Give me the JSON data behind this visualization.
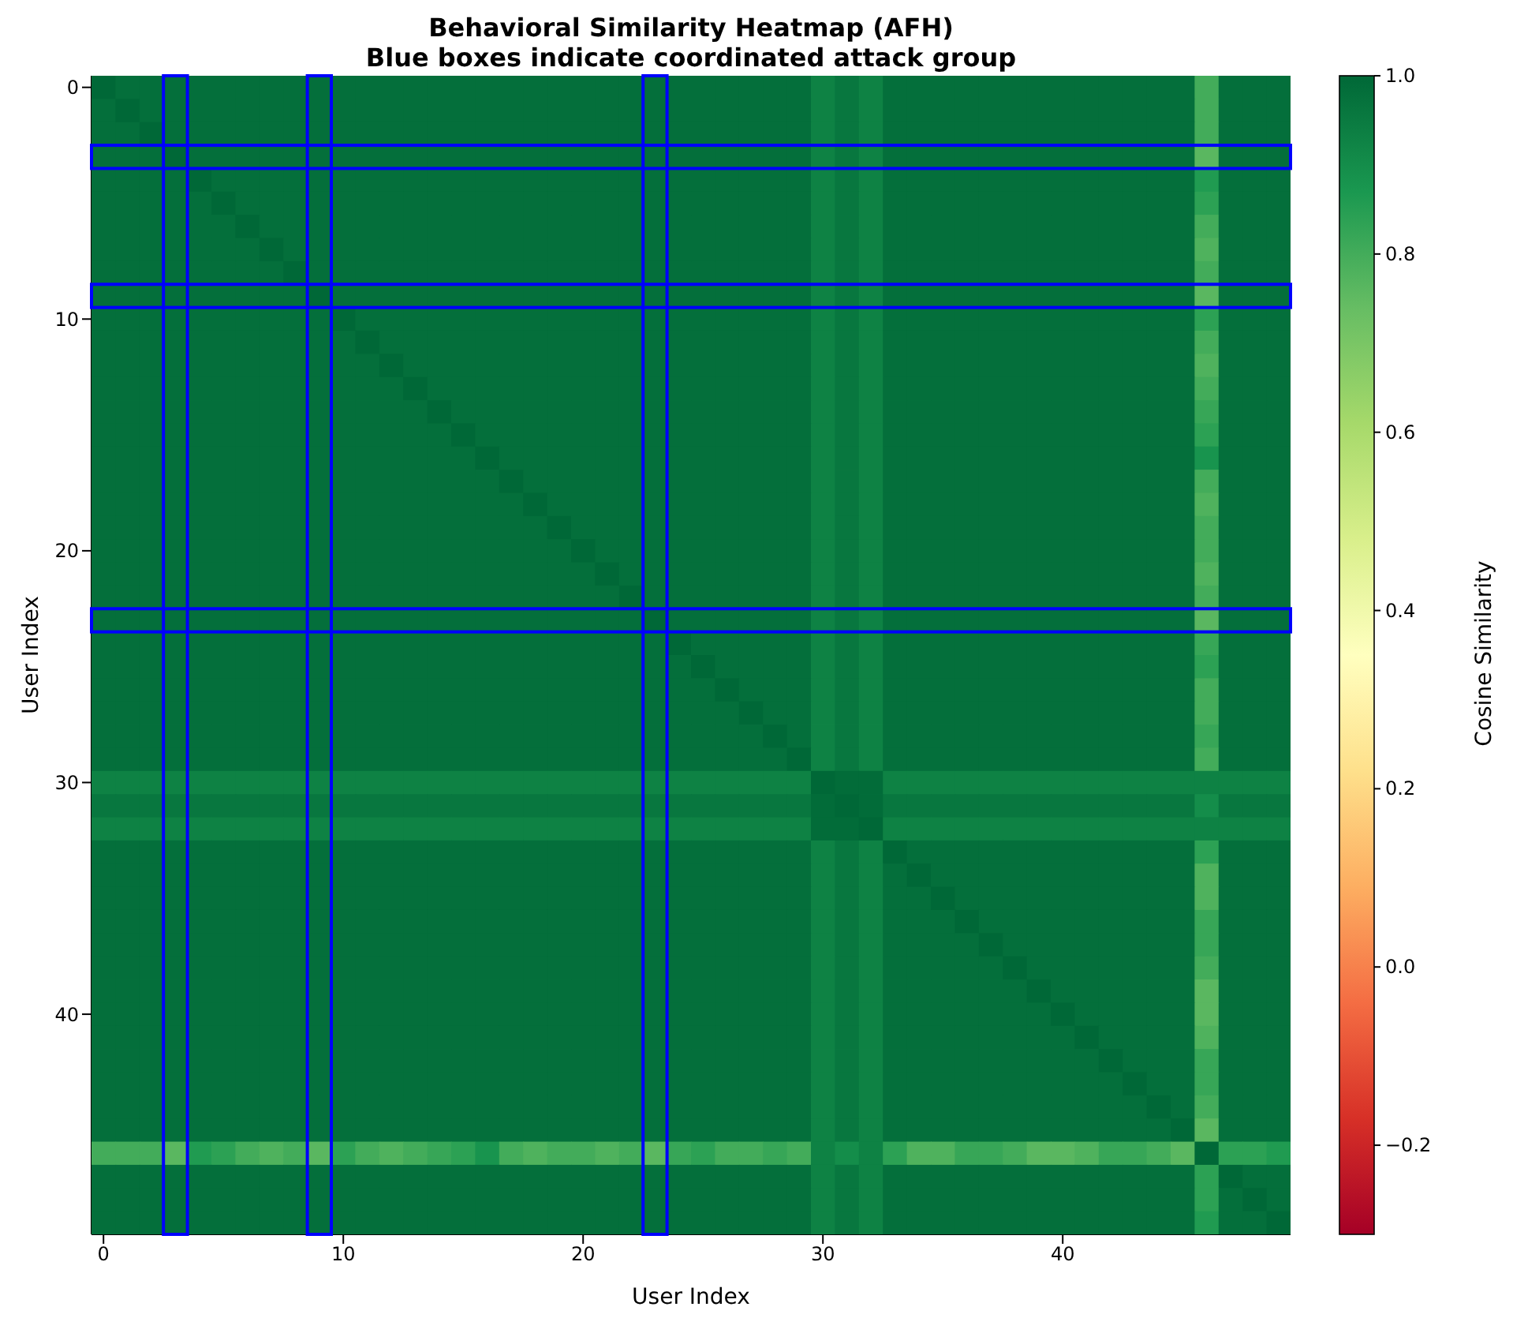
{
  "chart_data": {
    "type": "heatmap",
    "title": "Behavioral Similarity Heatmap (AFH)",
    "subtitle": "Blue boxes indicate coordinated attack group",
    "xlabel": "User Index",
    "ylabel": "User Index",
    "clabel": "Cosine Similarity",
    "categories": [
      "0",
      null,
      null,
      null,
      null,
      null,
      null,
      null,
      null,
      null,
      "10",
      null,
      null,
      null,
      null,
      null,
      null,
      null,
      null,
      null,
      "20",
      null,
      null,
      null,
      null,
      null,
      null,
      null,
      null,
      null,
      "30",
      null,
      null,
      null,
      null,
      null,
      null,
      null,
      null,
      null,
      "40",
      null,
      null,
      null,
      null,
      null,
      null,
      null,
      null,
      null
    ],
    "y_categories": [
      "0",
      null,
      null,
      null,
      null,
      null,
      null,
      null,
      null,
      null,
      "10",
      null,
      null,
      null,
      null,
      null,
      null,
      null,
      null,
      null,
      "20",
      null,
      null,
      null,
      null,
      null,
      null,
      null,
      null,
      null,
      "30",
      null,
      null,
      null,
      null,
      null,
      null,
      null,
      null,
      null,
      "40",
      null,
      null,
      null,
      null,
      null,
      null,
      null,
      null,
      null
    ],
    "clim": [
      -0.3,
      1.0
    ],
    "cticks": [
      {
        "value": -0.2,
        "label": "−0.2"
      },
      {
        "value": 0,
        "label": "0.0"
      },
      {
        "value": 0.2,
        "label": "0.2"
      },
      {
        "value": 0.4,
        "label": "0.4"
      },
      {
        "value": 0.6,
        "label": "0.6"
      },
      {
        "value": 0.8,
        "label": "0.8"
      },
      {
        "value": 1.0,
        "label": "1.0"
      }
    ],
    "cells": [
      [
        1,
        0.98,
        0.98,
        0.98,
        0.98,
        0.98,
        0.98,
        0.98,
        0.98,
        0.98,
        0.98,
        0.98,
        0.98,
        0.98,
        0.98,
        0.98,
        0.98,
        0.98,
        0.98,
        0.98,
        0.98,
        0.98,
        0.98,
        0.98,
        0.98,
        0.98,
        0.98,
        0.98,
        0.98,
        0.98,
        0.93,
        0.96,
        0.93,
        0.98,
        0.98,
        0.98,
        0.98,
        0.98,
        0.98,
        0.98,
        0.98,
        0.98,
        0.98,
        0.98,
        0.98,
        0.98,
        0.8,
        0.98,
        0.98,
        0.98
      ],
      [
        0.98,
        1,
        0.98,
        0.98,
        0.98,
        0.98,
        0.98,
        0.98,
        0.98,
        0.98,
        0.98,
        0.98,
        0.98,
        0.98,
        0.98,
        0.98,
        0.98,
        0.98,
        0.98,
        0.98,
        0.98,
        0.98,
        0.98,
        0.98,
        0.98,
        0.98,
        0.98,
        0.98,
        0.98,
        0.98,
        0.93,
        0.96,
        0.93,
        0.98,
        0.98,
        0.98,
        0.98,
        0.98,
        0.98,
        0.98,
        0.98,
        0.98,
        0.98,
        0.98,
        0.98,
        0.98,
        0.8,
        0.98,
        0.98,
        0.98
      ],
      [
        0.98,
        0.98,
        1,
        0.98,
        0.98,
        0.98,
        0.98,
        0.98,
        0.98,
        0.98,
        0.98,
        0.98,
        0.98,
        0.98,
        0.98,
        0.98,
        0.98,
        0.98,
        0.98,
        0.98,
        0.98,
        0.98,
        0.98,
        0.98,
        0.98,
        0.98,
        0.98,
        0.98,
        0.98,
        0.98,
        0.93,
        0.96,
        0.93,
        0.98,
        0.98,
        0.98,
        0.98,
        0.98,
        0.98,
        0.98,
        0.98,
        0.98,
        0.98,
        0.98,
        0.98,
        0.98,
        0.8,
        0.98,
        0.98,
        0.98
      ],
      [
        0.98,
        0.98,
        0.98,
        1,
        0.98,
        0.98,
        0.98,
        0.98,
        0.98,
        0.98,
        0.98,
        0.98,
        0.98,
        0.98,
        0.98,
        0.98,
        0.98,
        0.98,
        0.98,
        0.98,
        0.98,
        0.98,
        0.98,
        0.98,
        0.98,
        0.98,
        0.98,
        0.98,
        0.98,
        0.98,
        0.93,
        0.96,
        0.93,
        0.98,
        0.98,
        0.98,
        0.98,
        0.98,
        0.98,
        0.98,
        0.98,
        0.98,
        0.98,
        0.98,
        0.98,
        0.98,
        0.76,
        0.98,
        0.98,
        0.98
      ],
      [
        0.98,
        0.98,
        0.98,
        0.98,
        1,
        0.98,
        0.98,
        0.98,
        0.98,
        0.98,
        0.98,
        0.98,
        0.98,
        0.98,
        0.98,
        0.98,
        0.98,
        0.98,
        0.98,
        0.98,
        0.98,
        0.98,
        0.98,
        0.98,
        0.98,
        0.98,
        0.98,
        0.98,
        0.98,
        0.98,
        0.93,
        0.96,
        0.93,
        0.98,
        0.98,
        0.98,
        0.98,
        0.98,
        0.98,
        0.98,
        0.98,
        0.98,
        0.98,
        0.98,
        0.98,
        0.98,
        0.86,
        0.98,
        0.98,
        0.98
      ],
      [
        0.98,
        0.98,
        0.98,
        0.98,
        0.98,
        1,
        0.98,
        0.98,
        0.98,
        0.98,
        0.98,
        0.98,
        0.98,
        0.98,
        0.98,
        0.98,
        0.98,
        0.98,
        0.98,
        0.98,
        0.98,
        0.98,
        0.98,
        0.98,
        0.98,
        0.98,
        0.98,
        0.98,
        0.98,
        0.98,
        0.93,
        0.96,
        0.93,
        0.98,
        0.98,
        0.98,
        0.98,
        0.98,
        0.98,
        0.98,
        0.98,
        0.98,
        0.98,
        0.98,
        0.98,
        0.98,
        0.84,
        0.98,
        0.98,
        0.98
      ],
      [
        0.98,
        0.98,
        0.98,
        0.98,
        0.98,
        0.98,
        1,
        0.98,
        0.98,
        0.98,
        0.98,
        0.98,
        0.98,
        0.98,
        0.98,
        0.98,
        0.98,
        0.98,
        0.98,
        0.98,
        0.98,
        0.98,
        0.98,
        0.98,
        0.98,
        0.98,
        0.98,
        0.98,
        0.98,
        0.98,
        0.93,
        0.96,
        0.93,
        0.98,
        0.98,
        0.98,
        0.98,
        0.98,
        0.98,
        0.98,
        0.98,
        0.98,
        0.98,
        0.98,
        0.98,
        0.98,
        0.8,
        0.98,
        0.98,
        0.98
      ],
      [
        0.98,
        0.98,
        0.98,
        0.98,
        0.98,
        0.98,
        0.98,
        1,
        0.98,
        0.98,
        0.98,
        0.98,
        0.98,
        0.98,
        0.98,
        0.98,
        0.98,
        0.98,
        0.98,
        0.98,
        0.98,
        0.98,
        0.98,
        0.98,
        0.98,
        0.98,
        0.98,
        0.98,
        0.98,
        0.98,
        0.93,
        0.96,
        0.93,
        0.98,
        0.98,
        0.98,
        0.98,
        0.98,
        0.98,
        0.98,
        0.98,
        0.98,
        0.98,
        0.98,
        0.98,
        0.98,
        0.78,
        0.98,
        0.98,
        0.98
      ],
      [
        0.98,
        0.98,
        0.98,
        0.98,
        0.98,
        0.98,
        0.98,
        0.98,
        1,
        0.98,
        0.98,
        0.98,
        0.98,
        0.98,
        0.98,
        0.98,
        0.98,
        0.98,
        0.98,
        0.98,
        0.98,
        0.98,
        0.98,
        0.98,
        0.98,
        0.98,
        0.98,
        0.98,
        0.98,
        0.98,
        0.93,
        0.96,
        0.93,
        0.98,
        0.98,
        0.98,
        0.98,
        0.98,
        0.98,
        0.98,
        0.98,
        0.98,
        0.98,
        0.98,
        0.98,
        0.98,
        0.8,
        0.98,
        0.98,
        0.98
      ],
      [
        0.98,
        0.98,
        0.98,
        0.98,
        0.98,
        0.98,
        0.98,
        0.98,
        0.98,
        1,
        0.98,
        0.98,
        0.98,
        0.98,
        0.98,
        0.98,
        0.98,
        0.98,
        0.98,
        0.98,
        0.98,
        0.98,
        0.98,
        0.98,
        0.98,
        0.98,
        0.98,
        0.98,
        0.98,
        0.98,
        0.93,
        0.96,
        0.93,
        0.98,
        0.98,
        0.98,
        0.98,
        0.98,
        0.98,
        0.98,
        0.98,
        0.98,
        0.98,
        0.98,
        0.98,
        0.98,
        0.76,
        0.98,
        0.98,
        0.98
      ],
      [
        0.98,
        0.98,
        0.98,
        0.98,
        0.98,
        0.98,
        0.98,
        0.98,
        0.98,
        0.98,
        1,
        0.98,
        0.98,
        0.98,
        0.98,
        0.98,
        0.98,
        0.98,
        0.98,
        0.98,
        0.98,
        0.98,
        0.98,
        0.98,
        0.98,
        0.98,
        0.98,
        0.98,
        0.98,
        0.98,
        0.93,
        0.96,
        0.93,
        0.98,
        0.98,
        0.98,
        0.98,
        0.98,
        0.98,
        0.98,
        0.98,
        0.98,
        0.98,
        0.98,
        0.98,
        0.98,
        0.84,
        0.98,
        0.98,
        0.98
      ],
      [
        0.98,
        0.98,
        0.98,
        0.98,
        0.98,
        0.98,
        0.98,
        0.98,
        0.98,
        0.98,
        0.98,
        1,
        0.98,
        0.98,
        0.98,
        0.98,
        0.98,
        0.98,
        0.98,
        0.98,
        0.98,
        0.98,
        0.98,
        0.98,
        0.98,
        0.98,
        0.98,
        0.98,
        0.98,
        0.98,
        0.93,
        0.96,
        0.93,
        0.98,
        0.98,
        0.98,
        0.98,
        0.98,
        0.98,
        0.98,
        0.98,
        0.98,
        0.98,
        0.98,
        0.98,
        0.98,
        0.8,
        0.98,
        0.98,
        0.98
      ],
      [
        0.98,
        0.98,
        0.98,
        0.98,
        0.98,
        0.98,
        0.98,
        0.98,
        0.98,
        0.98,
        0.98,
        0.98,
        1,
        0.98,
        0.98,
        0.98,
        0.98,
        0.98,
        0.98,
        0.98,
        0.98,
        0.98,
        0.98,
        0.98,
        0.98,
        0.98,
        0.98,
        0.98,
        0.98,
        0.98,
        0.93,
        0.96,
        0.93,
        0.98,
        0.98,
        0.98,
        0.98,
        0.98,
        0.98,
        0.98,
        0.98,
        0.98,
        0.98,
        0.98,
        0.98,
        0.98,
        0.78,
        0.98,
        0.98,
        0.98
      ],
      [
        0.98,
        0.98,
        0.98,
        0.98,
        0.98,
        0.98,
        0.98,
        0.98,
        0.98,
        0.98,
        0.98,
        0.98,
        0.98,
        1,
        0.98,
        0.98,
        0.98,
        0.98,
        0.98,
        0.98,
        0.98,
        0.98,
        0.98,
        0.98,
        0.98,
        0.98,
        0.98,
        0.98,
        0.98,
        0.98,
        0.93,
        0.96,
        0.93,
        0.98,
        0.98,
        0.98,
        0.98,
        0.98,
        0.98,
        0.98,
        0.98,
        0.98,
        0.98,
        0.98,
        0.98,
        0.98,
        0.8,
        0.98,
        0.98,
        0.98
      ],
      [
        0.98,
        0.98,
        0.98,
        0.98,
        0.98,
        0.98,
        0.98,
        0.98,
        0.98,
        0.98,
        0.98,
        0.98,
        0.98,
        0.98,
        1,
        0.98,
        0.98,
        0.98,
        0.98,
        0.98,
        0.98,
        0.98,
        0.98,
        0.98,
        0.98,
        0.98,
        0.98,
        0.98,
        0.98,
        0.98,
        0.93,
        0.96,
        0.93,
        0.98,
        0.98,
        0.98,
        0.98,
        0.98,
        0.98,
        0.98,
        0.98,
        0.98,
        0.98,
        0.98,
        0.98,
        0.98,
        0.82,
        0.98,
        0.98,
        0.98
      ],
      [
        0.98,
        0.98,
        0.98,
        0.98,
        0.98,
        0.98,
        0.98,
        0.98,
        0.98,
        0.98,
        0.98,
        0.98,
        0.98,
        0.98,
        0.98,
        1,
        0.98,
        0.98,
        0.98,
        0.98,
        0.98,
        0.98,
        0.98,
        0.98,
        0.98,
        0.98,
        0.98,
        0.98,
        0.98,
        0.98,
        0.93,
        0.96,
        0.93,
        0.98,
        0.98,
        0.98,
        0.98,
        0.98,
        0.98,
        0.98,
        0.98,
        0.98,
        0.98,
        0.98,
        0.98,
        0.98,
        0.84,
        0.98,
        0.98,
        0.98
      ],
      [
        0.98,
        0.98,
        0.98,
        0.98,
        0.98,
        0.98,
        0.98,
        0.98,
        0.98,
        0.98,
        0.98,
        0.98,
        0.98,
        0.98,
        0.98,
        0.98,
        1,
        0.98,
        0.98,
        0.98,
        0.98,
        0.98,
        0.98,
        0.98,
        0.98,
        0.98,
        0.98,
        0.98,
        0.98,
        0.98,
        0.93,
        0.96,
        0.93,
        0.98,
        0.98,
        0.98,
        0.98,
        0.98,
        0.98,
        0.98,
        0.98,
        0.98,
        0.98,
        0.98,
        0.98,
        0.98,
        0.88,
        0.98,
        0.98,
        0.98
      ],
      [
        0.98,
        0.98,
        0.98,
        0.98,
        0.98,
        0.98,
        0.98,
        0.98,
        0.98,
        0.98,
        0.98,
        0.98,
        0.98,
        0.98,
        0.98,
        0.98,
        0.98,
        1,
        0.98,
        0.98,
        0.98,
        0.98,
        0.98,
        0.98,
        0.98,
        0.98,
        0.98,
        0.98,
        0.98,
        0.98,
        0.93,
        0.96,
        0.93,
        0.98,
        0.98,
        0.98,
        0.98,
        0.98,
        0.98,
        0.98,
        0.98,
        0.98,
        0.98,
        0.98,
        0.98,
        0.98,
        0.8,
        0.98,
        0.98,
        0.98
      ],
      [
        0.98,
        0.98,
        0.98,
        0.98,
        0.98,
        0.98,
        0.98,
        0.98,
        0.98,
        0.98,
        0.98,
        0.98,
        0.98,
        0.98,
        0.98,
        0.98,
        0.98,
        0.98,
        1,
        0.98,
        0.98,
        0.98,
        0.98,
        0.98,
        0.98,
        0.98,
        0.98,
        0.98,
        0.98,
        0.98,
        0.93,
        0.96,
        0.93,
        0.98,
        0.98,
        0.98,
        0.98,
        0.98,
        0.98,
        0.98,
        0.98,
        0.98,
        0.98,
        0.98,
        0.98,
        0.98,
        0.78,
        0.98,
        0.98,
        0.98
      ],
      [
        0.98,
        0.98,
        0.98,
        0.98,
        0.98,
        0.98,
        0.98,
        0.98,
        0.98,
        0.98,
        0.98,
        0.98,
        0.98,
        0.98,
        0.98,
        0.98,
        0.98,
        0.98,
        0.98,
        1,
        0.98,
        0.98,
        0.98,
        0.98,
        0.98,
        0.98,
        0.98,
        0.98,
        0.98,
        0.98,
        0.93,
        0.96,
        0.93,
        0.98,
        0.98,
        0.98,
        0.98,
        0.98,
        0.98,
        0.98,
        0.98,
        0.98,
        0.98,
        0.98,
        0.98,
        0.98,
        0.8,
        0.98,
        0.98,
        0.98
      ],
      [
        0.98,
        0.98,
        0.98,
        0.98,
        0.98,
        0.98,
        0.98,
        0.98,
        0.98,
        0.98,
        0.98,
        0.98,
        0.98,
        0.98,
        0.98,
        0.98,
        0.98,
        0.98,
        0.98,
        0.98,
        1,
        0.98,
        0.98,
        0.98,
        0.98,
        0.98,
        0.98,
        0.98,
        0.98,
        0.98,
        0.93,
        0.96,
        0.93,
        0.98,
        0.98,
        0.98,
        0.98,
        0.98,
        0.98,
        0.98,
        0.98,
        0.98,
        0.98,
        0.98,
        0.98,
        0.98,
        0.8,
        0.98,
        0.98,
        0.98
      ],
      [
        0.98,
        0.98,
        0.98,
        0.98,
        0.98,
        0.98,
        0.98,
        0.98,
        0.98,
        0.98,
        0.98,
        0.98,
        0.98,
        0.98,
        0.98,
        0.98,
        0.98,
        0.98,
        0.98,
        0.98,
        0.98,
        1,
        0.98,
        0.98,
        0.98,
        0.98,
        0.98,
        0.98,
        0.98,
        0.98,
        0.93,
        0.96,
        0.93,
        0.98,
        0.98,
        0.98,
        0.98,
        0.98,
        0.98,
        0.98,
        0.98,
        0.98,
        0.98,
        0.98,
        0.98,
        0.98,
        0.78,
        0.98,
        0.98,
        0.98
      ],
      [
        0.98,
        0.98,
        0.98,
        0.98,
        0.98,
        0.98,
        0.98,
        0.98,
        0.98,
        0.98,
        0.98,
        0.98,
        0.98,
        0.98,
        0.98,
        0.98,
        0.98,
        0.98,
        0.98,
        0.98,
        0.98,
        0.98,
        1,
        0.98,
        0.98,
        0.98,
        0.98,
        0.98,
        0.98,
        0.98,
        0.93,
        0.96,
        0.93,
        0.98,
        0.98,
        0.98,
        0.98,
        0.98,
        0.98,
        0.98,
        0.98,
        0.98,
        0.98,
        0.98,
        0.98,
        0.98,
        0.8,
        0.98,
        0.98,
        0.98
      ],
      [
        0.98,
        0.98,
        0.98,
        0.98,
        0.98,
        0.98,
        0.98,
        0.98,
        0.98,
        0.98,
        0.98,
        0.98,
        0.98,
        0.98,
        0.98,
        0.98,
        0.98,
        0.98,
        0.98,
        0.98,
        0.98,
        0.98,
        0.98,
        1,
        0.98,
        0.98,
        0.98,
        0.98,
        0.98,
        0.98,
        0.93,
        0.96,
        0.93,
        0.98,
        0.98,
        0.98,
        0.98,
        0.98,
        0.98,
        0.98,
        0.98,
        0.98,
        0.98,
        0.98,
        0.98,
        0.98,
        0.76,
        0.98,
        0.98,
        0.98
      ],
      [
        0.98,
        0.98,
        0.98,
        0.98,
        0.98,
        0.98,
        0.98,
        0.98,
        0.98,
        0.98,
        0.98,
        0.98,
        0.98,
        0.98,
        0.98,
        0.98,
        0.98,
        0.98,
        0.98,
        0.98,
        0.98,
        0.98,
        0.98,
        0.98,
        1,
        0.98,
        0.98,
        0.98,
        0.98,
        0.98,
        0.93,
        0.96,
        0.93,
        0.98,
        0.98,
        0.98,
        0.98,
        0.98,
        0.98,
        0.98,
        0.98,
        0.98,
        0.98,
        0.98,
        0.98,
        0.98,
        0.82,
        0.98,
        0.98,
        0.98
      ],
      [
        0.98,
        0.98,
        0.98,
        0.98,
        0.98,
        0.98,
        0.98,
        0.98,
        0.98,
        0.98,
        0.98,
        0.98,
        0.98,
        0.98,
        0.98,
        0.98,
        0.98,
        0.98,
        0.98,
        0.98,
        0.98,
        0.98,
        0.98,
        0.98,
        0.98,
        1,
        0.98,
        0.98,
        0.98,
        0.98,
        0.93,
        0.96,
        0.93,
        0.98,
        0.98,
        0.98,
        0.98,
        0.98,
        0.98,
        0.98,
        0.98,
        0.98,
        0.98,
        0.98,
        0.98,
        0.98,
        0.84,
        0.98,
        0.98,
        0.98
      ],
      [
        0.98,
        0.98,
        0.98,
        0.98,
        0.98,
        0.98,
        0.98,
        0.98,
        0.98,
        0.98,
        0.98,
        0.98,
        0.98,
        0.98,
        0.98,
        0.98,
        0.98,
        0.98,
        0.98,
        0.98,
        0.98,
        0.98,
        0.98,
        0.98,
        0.98,
        0.98,
        1,
        0.98,
        0.98,
        0.98,
        0.93,
        0.96,
        0.93,
        0.98,
        0.98,
        0.98,
        0.98,
        0.98,
        0.98,
        0.98,
        0.98,
        0.98,
        0.98,
        0.98,
        0.98,
        0.98,
        0.8,
        0.98,
        0.98,
        0.98
      ],
      [
        0.98,
        0.98,
        0.98,
        0.98,
        0.98,
        0.98,
        0.98,
        0.98,
        0.98,
        0.98,
        0.98,
        0.98,
        0.98,
        0.98,
        0.98,
        0.98,
        0.98,
        0.98,
        0.98,
        0.98,
        0.98,
        0.98,
        0.98,
        0.98,
        0.98,
        0.98,
        0.98,
        1,
        0.98,
        0.98,
        0.93,
        0.96,
        0.93,
        0.98,
        0.98,
        0.98,
        0.98,
        0.98,
        0.98,
        0.98,
        0.98,
        0.98,
        0.98,
        0.98,
        0.98,
        0.98,
        0.8,
        0.98,
        0.98,
        0.98
      ],
      [
        0.98,
        0.98,
        0.98,
        0.98,
        0.98,
        0.98,
        0.98,
        0.98,
        0.98,
        0.98,
        0.98,
        0.98,
        0.98,
        0.98,
        0.98,
        0.98,
        0.98,
        0.98,
        0.98,
        0.98,
        0.98,
        0.98,
        0.98,
        0.98,
        0.98,
        0.98,
        0.98,
        0.98,
        1,
        0.98,
        0.93,
        0.96,
        0.93,
        0.98,
        0.98,
        0.98,
        0.98,
        0.98,
        0.98,
        0.98,
        0.98,
        0.98,
        0.98,
        0.98,
        0.98,
        0.98,
        0.82,
        0.98,
        0.98,
        0.98
      ],
      [
        0.98,
        0.98,
        0.98,
        0.98,
        0.98,
        0.98,
        0.98,
        0.98,
        0.98,
        0.98,
        0.98,
        0.98,
        0.98,
        0.98,
        0.98,
        0.98,
        0.98,
        0.98,
        0.98,
        0.98,
        0.98,
        0.98,
        0.98,
        0.98,
        0.98,
        0.98,
        0.98,
        0.98,
        0.98,
        1,
        0.93,
        0.96,
        0.93,
        0.98,
        0.98,
        0.98,
        0.98,
        0.98,
        0.98,
        0.98,
        0.98,
        0.98,
        0.98,
        0.98,
        0.98,
        0.98,
        0.8,
        0.98,
        0.98,
        0.98
      ],
      [
        0.93,
        0.93,
        0.93,
        0.93,
        0.93,
        0.93,
        0.93,
        0.93,
        0.93,
        0.93,
        0.93,
        0.93,
        0.93,
        0.93,
        0.93,
        0.93,
        0.93,
        0.93,
        0.93,
        0.93,
        0.93,
        0.93,
        0.93,
        0.93,
        0.93,
        0.93,
        0.93,
        0.93,
        0.93,
        0.93,
        1,
        0.99,
        0.99,
        0.93,
        0.93,
        0.93,
        0.93,
        0.93,
        0.93,
        0.93,
        0.93,
        0.93,
        0.93,
        0.93,
        0.93,
        0.93,
        0.93,
        0.93,
        0.93,
        0.93
      ],
      [
        0.96,
        0.96,
        0.96,
        0.96,
        0.96,
        0.96,
        0.96,
        0.96,
        0.96,
        0.96,
        0.96,
        0.96,
        0.96,
        0.96,
        0.96,
        0.96,
        0.96,
        0.96,
        0.96,
        0.96,
        0.96,
        0.96,
        0.96,
        0.96,
        0.96,
        0.96,
        0.96,
        0.96,
        0.96,
        0.96,
        0.99,
        1,
        0.99,
        0.96,
        0.96,
        0.96,
        0.96,
        0.96,
        0.96,
        0.96,
        0.96,
        0.96,
        0.96,
        0.96,
        0.96,
        0.96,
        0.9,
        0.96,
        0.96,
        0.96
      ],
      [
        0.93,
        0.93,
        0.93,
        0.93,
        0.93,
        0.93,
        0.93,
        0.93,
        0.93,
        0.93,
        0.93,
        0.93,
        0.93,
        0.93,
        0.93,
        0.93,
        0.93,
        0.93,
        0.93,
        0.93,
        0.93,
        0.93,
        0.93,
        0.93,
        0.93,
        0.93,
        0.93,
        0.93,
        0.93,
        0.93,
        0.99,
        0.99,
        1,
        0.93,
        0.93,
        0.93,
        0.93,
        0.93,
        0.93,
        0.93,
        0.93,
        0.93,
        0.93,
        0.93,
        0.93,
        0.93,
        0.93,
        0.93,
        0.93,
        0.93
      ],
      [
        0.98,
        0.98,
        0.98,
        0.98,
        0.98,
        0.98,
        0.98,
        0.98,
        0.98,
        0.98,
        0.98,
        0.98,
        0.98,
        0.98,
        0.98,
        0.98,
        0.98,
        0.98,
        0.98,
        0.98,
        0.98,
        0.98,
        0.98,
        0.98,
        0.98,
        0.98,
        0.98,
        0.98,
        0.98,
        0.98,
        0.93,
        0.96,
        0.93,
        1,
        0.98,
        0.98,
        0.98,
        0.98,
        0.98,
        0.98,
        0.98,
        0.98,
        0.98,
        0.98,
        0.98,
        0.98,
        0.84,
        0.98,
        0.98,
        0.98
      ],
      [
        0.98,
        0.98,
        0.98,
        0.98,
        0.98,
        0.98,
        0.98,
        0.98,
        0.98,
        0.98,
        0.98,
        0.98,
        0.98,
        0.98,
        0.98,
        0.98,
        0.98,
        0.98,
        0.98,
        0.98,
        0.98,
        0.98,
        0.98,
        0.98,
        0.98,
        0.98,
        0.98,
        0.98,
        0.98,
        0.98,
        0.93,
        0.96,
        0.93,
        0.98,
        1,
        0.98,
        0.98,
        0.98,
        0.98,
        0.98,
        0.98,
        0.98,
        0.98,
        0.98,
        0.98,
        0.98,
        0.78,
        0.98,
        0.98,
        0.98
      ],
      [
        0.98,
        0.98,
        0.98,
        0.98,
        0.98,
        0.98,
        0.98,
        0.98,
        0.98,
        0.98,
        0.98,
        0.98,
        0.98,
        0.98,
        0.98,
        0.98,
        0.98,
        0.98,
        0.98,
        0.98,
        0.98,
        0.98,
        0.98,
        0.98,
        0.98,
        0.98,
        0.98,
        0.98,
        0.98,
        0.98,
        0.93,
        0.96,
        0.93,
        0.98,
        0.98,
        1,
        0.98,
        0.98,
        0.98,
        0.98,
        0.98,
        0.98,
        0.98,
        0.98,
        0.98,
        0.98,
        0.78,
        0.98,
        0.98,
        0.98
      ],
      [
        0.98,
        0.98,
        0.98,
        0.98,
        0.98,
        0.98,
        0.98,
        0.98,
        0.98,
        0.98,
        0.98,
        0.98,
        0.98,
        0.98,
        0.98,
        0.98,
        0.98,
        0.98,
        0.98,
        0.98,
        0.98,
        0.98,
        0.98,
        0.98,
        0.98,
        0.98,
        0.98,
        0.98,
        0.98,
        0.98,
        0.93,
        0.96,
        0.93,
        0.98,
        0.98,
        0.98,
        1,
        0.98,
        0.98,
        0.98,
        0.98,
        0.98,
        0.98,
        0.98,
        0.98,
        0.98,
        0.82,
        0.98,
        0.98,
        0.98
      ],
      [
        0.98,
        0.98,
        0.98,
        0.98,
        0.98,
        0.98,
        0.98,
        0.98,
        0.98,
        0.98,
        0.98,
        0.98,
        0.98,
        0.98,
        0.98,
        0.98,
        0.98,
        0.98,
        0.98,
        0.98,
        0.98,
        0.98,
        0.98,
        0.98,
        0.98,
        0.98,
        0.98,
        0.98,
        0.98,
        0.98,
        0.93,
        0.96,
        0.93,
        0.98,
        0.98,
        0.98,
        0.98,
        1,
        0.98,
        0.98,
        0.98,
        0.98,
        0.98,
        0.98,
        0.98,
        0.98,
        0.82,
        0.98,
        0.98,
        0.98
      ],
      [
        0.98,
        0.98,
        0.98,
        0.98,
        0.98,
        0.98,
        0.98,
        0.98,
        0.98,
        0.98,
        0.98,
        0.98,
        0.98,
        0.98,
        0.98,
        0.98,
        0.98,
        0.98,
        0.98,
        0.98,
        0.98,
        0.98,
        0.98,
        0.98,
        0.98,
        0.98,
        0.98,
        0.98,
        0.98,
        0.98,
        0.93,
        0.96,
        0.93,
        0.98,
        0.98,
        0.98,
        0.98,
        0.98,
        1,
        0.98,
        0.98,
        0.98,
        0.98,
        0.98,
        0.98,
        0.98,
        0.8,
        0.98,
        0.98,
        0.98
      ],
      [
        0.98,
        0.98,
        0.98,
        0.98,
        0.98,
        0.98,
        0.98,
        0.98,
        0.98,
        0.98,
        0.98,
        0.98,
        0.98,
        0.98,
        0.98,
        0.98,
        0.98,
        0.98,
        0.98,
        0.98,
        0.98,
        0.98,
        0.98,
        0.98,
        0.98,
        0.98,
        0.98,
        0.98,
        0.98,
        0.98,
        0.93,
        0.96,
        0.93,
        0.98,
        0.98,
        0.98,
        0.98,
        0.98,
        0.98,
        1,
        0.98,
        0.98,
        0.98,
        0.98,
        0.98,
        0.98,
        0.76,
        0.98,
        0.98,
        0.98
      ],
      [
        0.98,
        0.98,
        0.98,
        0.98,
        0.98,
        0.98,
        0.98,
        0.98,
        0.98,
        0.98,
        0.98,
        0.98,
        0.98,
        0.98,
        0.98,
        0.98,
        0.98,
        0.98,
        0.98,
        0.98,
        0.98,
        0.98,
        0.98,
        0.98,
        0.98,
        0.98,
        0.98,
        0.98,
        0.98,
        0.98,
        0.93,
        0.96,
        0.93,
        0.98,
        0.98,
        0.98,
        0.98,
        0.98,
        0.98,
        0.98,
        1,
        0.98,
        0.98,
        0.98,
        0.98,
        0.98,
        0.76,
        0.98,
        0.98,
        0.98
      ],
      [
        0.98,
        0.98,
        0.98,
        0.98,
        0.98,
        0.98,
        0.98,
        0.98,
        0.98,
        0.98,
        0.98,
        0.98,
        0.98,
        0.98,
        0.98,
        0.98,
        0.98,
        0.98,
        0.98,
        0.98,
        0.98,
        0.98,
        0.98,
        0.98,
        0.98,
        0.98,
        0.98,
        0.98,
        0.98,
        0.98,
        0.93,
        0.96,
        0.93,
        0.98,
        0.98,
        0.98,
        0.98,
        0.98,
        0.98,
        0.98,
        0.98,
        1,
        0.98,
        0.98,
        0.98,
        0.98,
        0.78,
        0.98,
        0.98,
        0.98
      ],
      [
        0.98,
        0.98,
        0.98,
        0.98,
        0.98,
        0.98,
        0.98,
        0.98,
        0.98,
        0.98,
        0.98,
        0.98,
        0.98,
        0.98,
        0.98,
        0.98,
        0.98,
        0.98,
        0.98,
        0.98,
        0.98,
        0.98,
        0.98,
        0.98,
        0.98,
        0.98,
        0.98,
        0.98,
        0.98,
        0.98,
        0.93,
        0.96,
        0.93,
        0.98,
        0.98,
        0.98,
        0.98,
        0.98,
        0.98,
        0.98,
        0.98,
        0.98,
        1,
        0.98,
        0.98,
        0.98,
        0.82,
        0.98,
        0.98,
        0.98
      ],
      [
        0.98,
        0.98,
        0.98,
        0.98,
        0.98,
        0.98,
        0.98,
        0.98,
        0.98,
        0.98,
        0.98,
        0.98,
        0.98,
        0.98,
        0.98,
        0.98,
        0.98,
        0.98,
        0.98,
        0.98,
        0.98,
        0.98,
        0.98,
        0.98,
        0.98,
        0.98,
        0.98,
        0.98,
        0.98,
        0.98,
        0.93,
        0.96,
        0.93,
        0.98,
        0.98,
        0.98,
        0.98,
        0.98,
        0.98,
        0.98,
        0.98,
        0.98,
        0.98,
        1,
        0.98,
        0.98,
        0.82,
        0.98,
        0.98,
        0.98
      ],
      [
        0.98,
        0.98,
        0.98,
        0.98,
        0.98,
        0.98,
        0.98,
        0.98,
        0.98,
        0.98,
        0.98,
        0.98,
        0.98,
        0.98,
        0.98,
        0.98,
        0.98,
        0.98,
        0.98,
        0.98,
        0.98,
        0.98,
        0.98,
        0.98,
        0.98,
        0.98,
        0.98,
        0.98,
        0.98,
        0.98,
        0.93,
        0.96,
        0.93,
        0.98,
        0.98,
        0.98,
        0.98,
        0.98,
        0.98,
        0.98,
        0.98,
        0.98,
        0.98,
        0.98,
        1,
        0.98,
        0.8,
        0.98,
        0.98,
        0.98
      ],
      [
        0.98,
        0.98,
        0.98,
        0.98,
        0.98,
        0.98,
        0.98,
        0.98,
        0.98,
        0.98,
        0.98,
        0.98,
        0.98,
        0.98,
        0.98,
        0.98,
        0.98,
        0.98,
        0.98,
        0.98,
        0.98,
        0.98,
        0.98,
        0.98,
        0.98,
        0.98,
        0.98,
        0.98,
        0.98,
        0.98,
        0.93,
        0.96,
        0.93,
        0.98,
        0.98,
        0.98,
        0.98,
        0.98,
        0.98,
        0.98,
        0.98,
        0.98,
        0.98,
        0.98,
        0.98,
        1,
        0.76,
        0.98,
        0.98,
        0.98
      ],
      [
        0.8,
        0.8,
        0.8,
        0.76,
        0.86,
        0.84,
        0.8,
        0.78,
        0.8,
        0.76,
        0.84,
        0.8,
        0.78,
        0.8,
        0.82,
        0.84,
        0.88,
        0.8,
        0.78,
        0.8,
        0.8,
        0.78,
        0.8,
        0.76,
        0.82,
        0.84,
        0.8,
        0.8,
        0.82,
        0.8,
        0.93,
        0.9,
        0.93,
        0.84,
        0.78,
        0.78,
        0.82,
        0.82,
        0.8,
        0.76,
        0.76,
        0.78,
        0.82,
        0.82,
        0.8,
        0.76,
        1,
        0.84,
        0.84,
        0.86
      ],
      [
        0.98,
        0.98,
        0.98,
        0.98,
        0.98,
        0.98,
        0.98,
        0.98,
        0.98,
        0.98,
        0.98,
        0.98,
        0.98,
        0.98,
        0.98,
        0.98,
        0.98,
        0.98,
        0.98,
        0.98,
        0.98,
        0.98,
        0.98,
        0.98,
        0.98,
        0.98,
        0.98,
        0.98,
        0.98,
        0.98,
        0.93,
        0.96,
        0.93,
        0.98,
        0.98,
        0.98,
        0.98,
        0.98,
        0.98,
        0.98,
        0.98,
        0.98,
        0.98,
        0.98,
        0.98,
        0.98,
        0.84,
        1,
        0.98,
        0.98
      ],
      [
        0.98,
        0.98,
        0.98,
        0.98,
        0.98,
        0.98,
        0.98,
        0.98,
        0.98,
        0.98,
        0.98,
        0.98,
        0.98,
        0.98,
        0.98,
        0.98,
        0.98,
        0.98,
        0.98,
        0.98,
        0.98,
        0.98,
        0.98,
        0.98,
        0.98,
        0.98,
        0.98,
        0.98,
        0.98,
        0.98,
        0.93,
        0.96,
        0.93,
        0.98,
        0.98,
        0.98,
        0.98,
        0.98,
        0.98,
        0.98,
        0.98,
        0.98,
        0.98,
        0.98,
        0.98,
        0.98,
        0.84,
        0.98,
        1,
        0.98
      ],
      [
        0.98,
        0.98,
        0.98,
        0.98,
        0.98,
        0.98,
        0.98,
        0.98,
        0.98,
        0.98,
        0.98,
        0.98,
        0.98,
        0.98,
        0.98,
        0.98,
        0.98,
        0.98,
        0.98,
        0.98,
        0.98,
        0.98,
        0.98,
        0.98,
        0.98,
        0.98,
        0.98,
        0.98,
        0.98,
        0.98,
        0.93,
        0.96,
        0.93,
        0.98,
        0.98,
        0.98,
        0.98,
        0.98,
        0.98,
        0.98,
        0.98,
        0.98,
        0.98,
        0.98,
        0.98,
        0.98,
        0.86,
        0.98,
        0.98,
        1
      ]
    ]
  }
}
